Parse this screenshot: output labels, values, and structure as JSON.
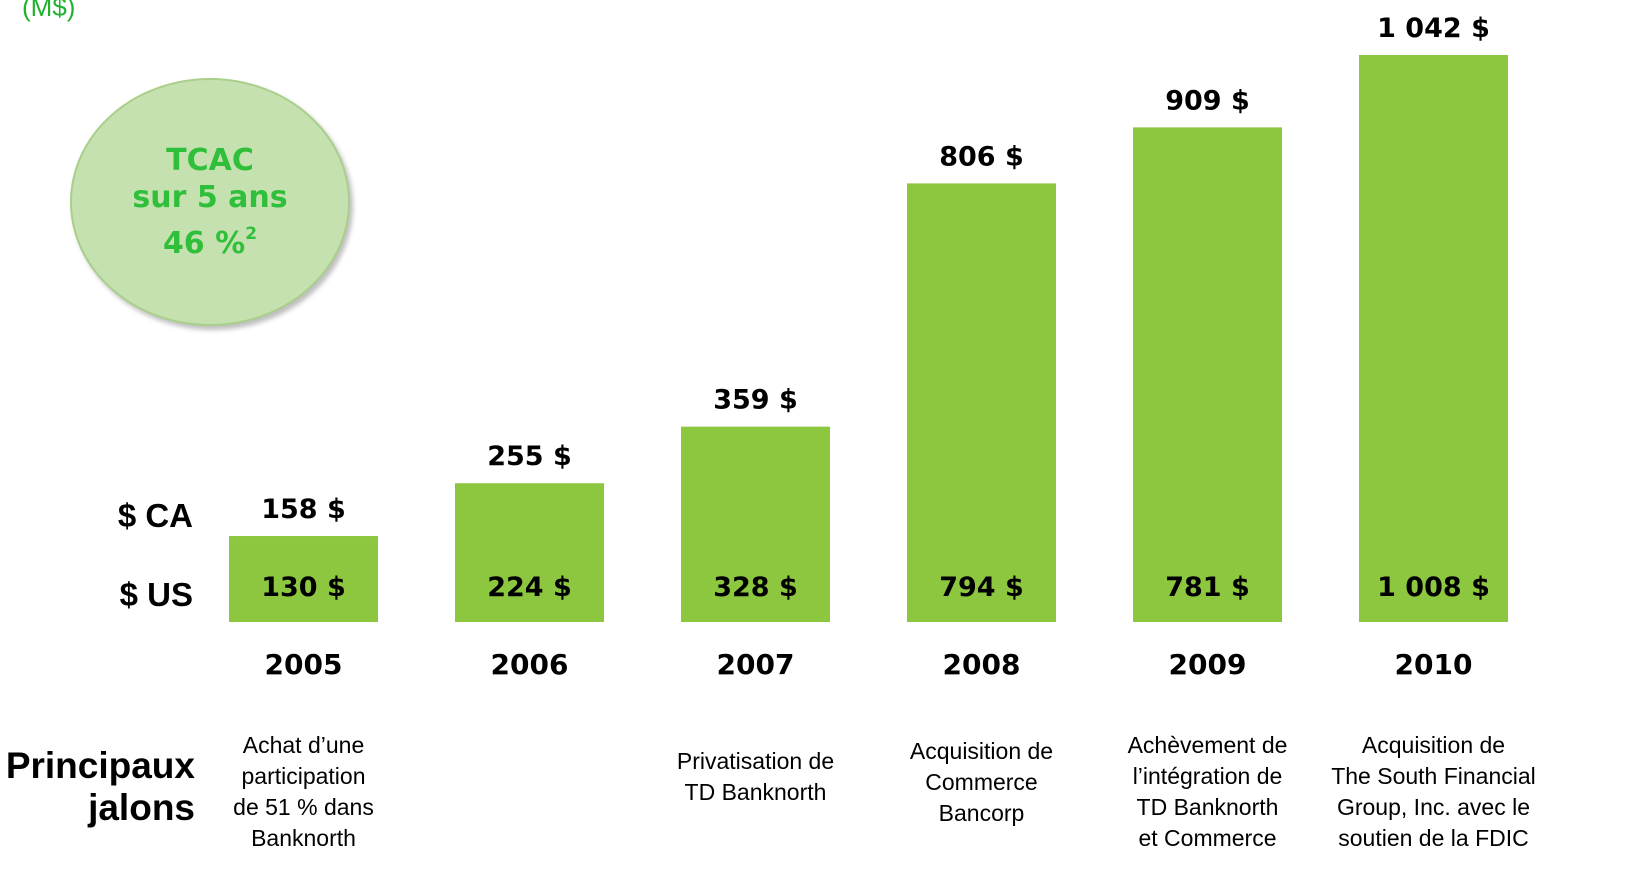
{
  "chart_data": {
    "type": "bar",
    "unit_label": "(M$)",
    "categories": [
      "2005",
      "2006",
      "2007",
      "2008",
      "2009",
      "2010"
    ],
    "series": [
      {
        "name": "$ CA",
        "values": [
          158,
          255,
          359,
          806,
          909,
          1042
        ],
        "labels": [
          "158 $",
          "255 $",
          "359 $",
          "806 $",
          "909 $",
          "1 042 $"
        ]
      },
      {
        "name": "$ US",
        "values": [
          130,
          224,
          328,
          794,
          781,
          1008
        ],
        "labels": [
          "130 $",
          "224 $",
          "328 $",
          "794 $",
          "781 $",
          "1 008 $"
        ]
      }
    ],
    "ylim": [
      0,
      1042
    ],
    "bar_color": "#8dc63f",
    "grid": false
  },
  "callout": {
    "line1": "TCAC",
    "line2": "sur 5 ans",
    "value": "46 %",
    "footnote": "2"
  },
  "row_labels": {
    "ca": "$ CA",
    "us": "$ US"
  },
  "milestones": {
    "label_line1": "Principaux",
    "label_line2": "jalons",
    "items": [
      "Achat d’une\nparticipation\nde 51 % dans\nBanknorth",
      "",
      "Privatisation de\nTD Banknorth",
      "Acquisition de\nCommerce\nBancorp",
      "Achèvement de\nl’intégration de\nTD Banknorth\net Commerce",
      "Acquisition de\nThe South Financial\nGroup, Inc. avec le\nsoutien de la FDIC"
    ]
  },
  "colors": {
    "accent_green": "#1fb22f",
    "bar_green": "#8dc63f",
    "circle_fill": "#c6e1b0"
  }
}
